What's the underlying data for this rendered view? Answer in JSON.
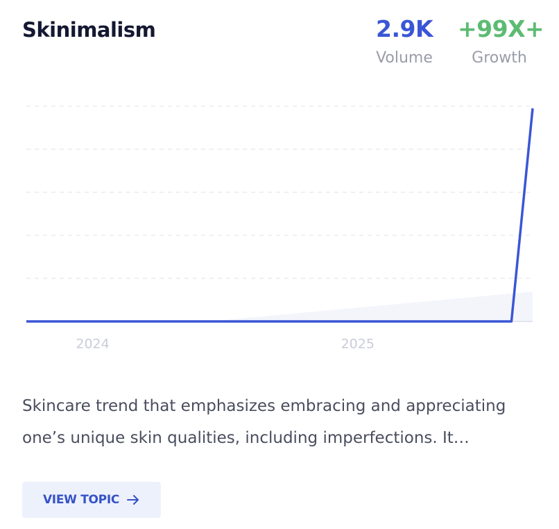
{
  "header": {
    "title": "Skinimalism",
    "metrics": [
      {
        "value": "2.9K",
        "label": "Volume"
      },
      {
        "value": "+99X+",
        "label": "Growth"
      }
    ]
  },
  "chart_data": {
    "type": "line",
    "x": [
      2023.75,
      2025.58,
      2025.66
    ],
    "xlim": [
      2023.75,
      2025.66
    ],
    "xticks": [
      2024,
      2025
    ],
    "ylim": [
      0,
      100
    ],
    "yticks": [
      0,
      20,
      40,
      60,
      80,
      100
    ],
    "grid": true,
    "series": [
      {
        "color": "#3a56d6",
        "values": [
          0,
          0,
          99
        ]
      }
    ]
  },
  "description": "Skincare trend that emphasizes embracing and appreciating one’s unique skin qualities, including imperfections. It…",
  "button": {
    "label": "VIEW TOPIC"
  }
}
